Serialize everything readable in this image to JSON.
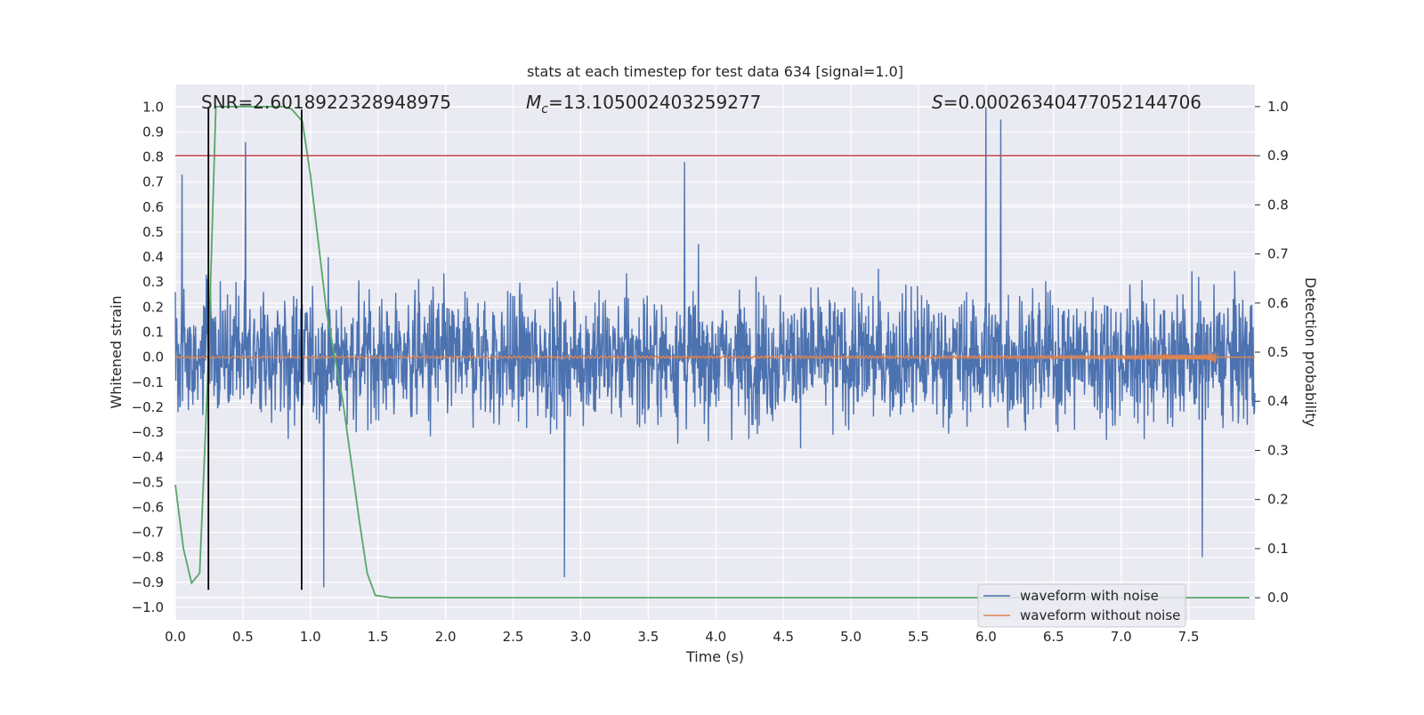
{
  "chart_data": {
    "type": "line",
    "title": "stats at each timestep for test data 634 [signal=1.0]",
    "xlabel": "Time (s)",
    "ylabel": "Whitened strain",
    "y2label": "Detection probability",
    "xlim": [
      0.0,
      7.99
    ],
    "ylim": [
      -1.05,
      1.09
    ],
    "y2lim": [
      -0.045,
      1.045
    ],
    "x_ticks": [
      "0.0",
      "0.5",
      "1.0",
      "1.5",
      "2.0",
      "2.5",
      "3.0",
      "3.5",
      "4.0",
      "4.5",
      "5.0",
      "5.5",
      "6.0",
      "6.5",
      "7.0",
      "7.5"
    ],
    "y_ticks": [
      "−1.0",
      "−0.9",
      "−0.8",
      "−0.7",
      "−0.6",
      "−0.5",
      "−0.4",
      "−0.3",
      "−0.2",
      "−0.1",
      "0.0",
      "0.1",
      "0.2",
      "0.3",
      "0.4",
      "0.5",
      "0.6",
      "0.7",
      "0.8",
      "0.9",
      "1.0"
    ],
    "y2_ticks": [
      "0.0",
      "0.1",
      "0.2",
      "0.3",
      "0.4",
      "0.5",
      "0.6",
      "0.7",
      "0.8",
      "0.9",
      "1.0"
    ],
    "grid": true,
    "legend_position": "bottom-right",
    "annotations": {
      "snr": "SNR=2.6018922328948975",
      "mc_symbol": "M",
      "mc_sub": "c",
      "mc_value": "=13.105002403259277",
      "s_symbol": "S",
      "s_value": "=0.00026340477052144706"
    },
    "series": [
      {
        "name": "waveform with noise",
        "color": "#4c72b0",
        "axis": "left",
        "kind": "noise",
        "band_lower": -0.33,
        "band_upper": 0.33,
        "peaks": [
          {
            "x": 0.52,
            "y": 0.86
          },
          {
            "x": 6.0,
            "y": 1.0
          },
          {
            "x": 6.11,
            "y": 0.95
          },
          {
            "x": 2.88,
            "y": -0.88
          },
          {
            "x": 1.1,
            "y": -0.92
          },
          {
            "x": 7.6,
            "y": -0.8
          },
          {
            "x": 3.77,
            "y": 0.78
          },
          {
            "x": 0.05,
            "y": 0.73
          }
        ]
      },
      {
        "name": "waveform without noise",
        "color": "#dd8452",
        "axis": "left",
        "kind": "chirp",
        "t_merger": 7.7,
        "peak_amplitude": 0.11
      },
      {
        "color": "#55a868",
        "axis": "right",
        "kind": "line",
        "x": [
          0.0,
          0.06,
          0.12,
          0.18,
          0.24,
          0.3,
          0.36,
          0.42,
          0.5,
          0.6,
          0.7,
          0.8,
          0.86,
          0.94,
          1.0,
          1.06,
          1.12,
          1.18,
          1.24,
          1.3,
          1.36,
          1.42,
          1.48,
          1.6,
          1.8,
          2.5,
          4.0,
          6.0,
          7.0,
          7.95
        ],
        "y": [
          0.23,
          0.1,
          0.03,
          0.05,
          0.45,
          1.0,
          1.0,
          1.0,
          1.0,
          1.0,
          1.0,
          1.0,
          0.995,
          0.97,
          0.86,
          0.72,
          0.58,
          0.49,
          0.4,
          0.28,
          0.16,
          0.05,
          0.005,
          0.0,
          0.0,
          0.0,
          0.0,
          0.0,
          0.0,
          0.0
        ]
      },
      {
        "color": "#c44e52",
        "axis": "right",
        "kind": "hline",
        "y": 0.9
      }
    ],
    "vlines": [
      {
        "x": 0.245,
        "y_from": -0.93,
        "y_to": 1.0,
        "color": "#000000"
      },
      {
        "x": 0.935,
        "y_from": -0.93,
        "y_to": 0.99,
        "color": "#000000"
      }
    ]
  }
}
